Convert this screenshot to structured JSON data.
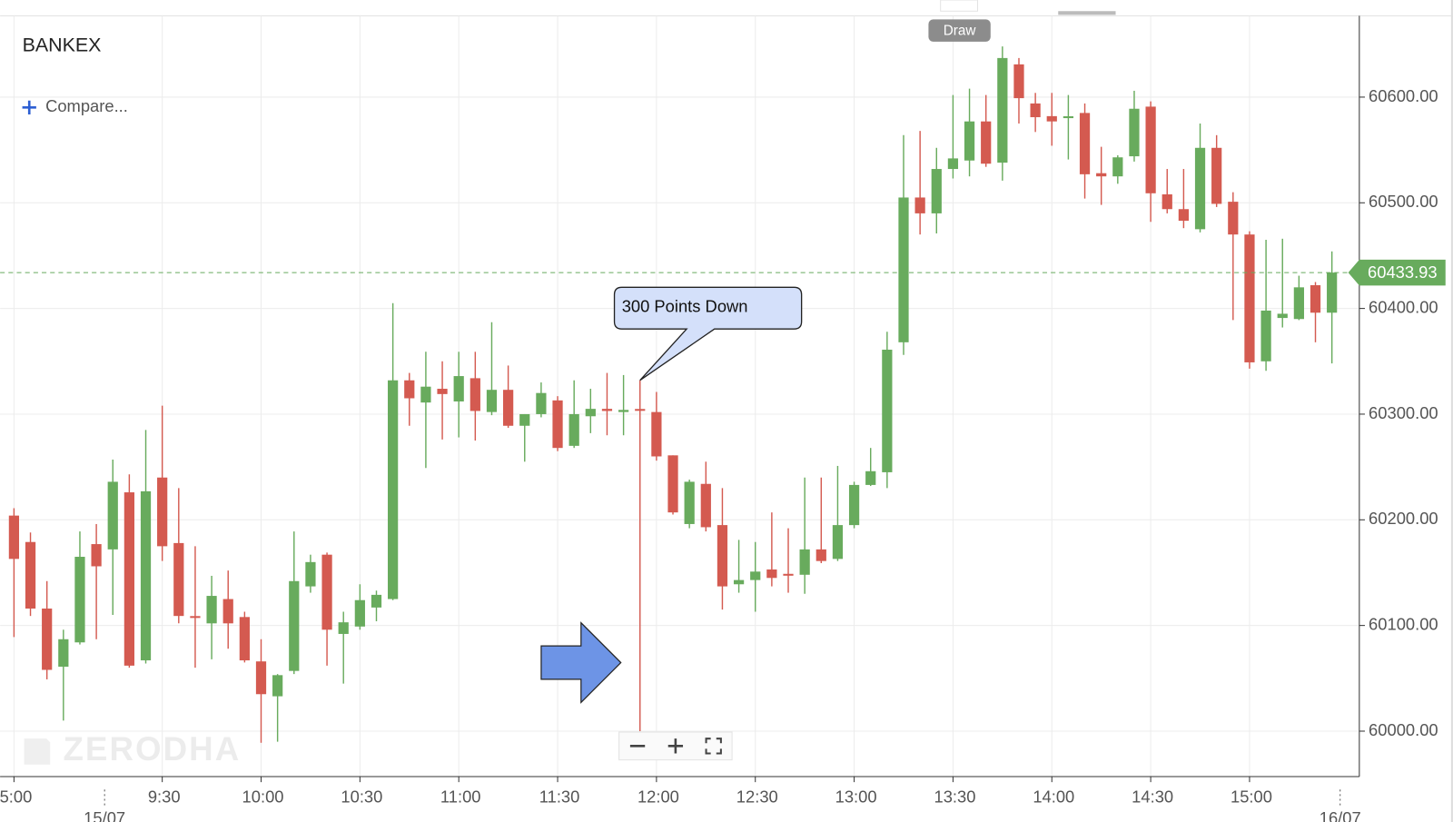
{
  "chart_data": {
    "type": "candlestick",
    "title": "BANKEX",
    "categories": [
      "5:00",
      null,
      null,
      null,
      null,
      null,
      null,
      null,
      null,
      "9:30",
      null,
      null,
      null,
      null,
      null,
      "10:00",
      null,
      null,
      null,
      null,
      null,
      "10:30",
      null,
      null,
      null,
      null,
      null,
      "11:00",
      null,
      null,
      null,
      null,
      null,
      "11:30",
      null,
      null,
      null,
      null,
      null,
      "12:00",
      null,
      null,
      null,
      null,
      null,
      "12:30",
      null,
      null,
      null,
      null,
      null,
      "13:00",
      null,
      null,
      null,
      null,
      null,
      "13:30",
      null,
      null,
      null,
      null,
      null,
      "14:00",
      null,
      null,
      null,
      null,
      null,
      "14:30",
      null,
      null,
      null,
      null,
      null,
      "15:00",
      null,
      null,
      null,
      null,
      null
    ],
    "day_labels": [
      "15/07",
      "16/07"
    ],
    "open": [
      60204,
      60179,
      60116,
      60061,
      60084,
      60177,
      60172,
      60226,
      60067,
      60240,
      60178,
      60108,
      60102,
      60125,
      60108,
      60066,
      60033,
      60057,
      60137,
      60167,
      60092,
      60099,
      60117,
      60125,
      60332,
      60311,
      60324,
      60312,
      60334,
      60302,
      60323,
      60289,
      60300,
      60313,
      60270,
      60298,
      60305,
      60302,
      60304,
      60302,
      60261,
      60196,
      60234,
      60195,
      60139,
      60143,
      60153,
      60148,
      60148,
      60172,
      60163,
      60195,
      60233,
      60245,
      60368,
      60505,
      60490,
      60532,
      60540,
      60577,
      60538,
      60631,
      60594,
      60582,
      60580,
      60585,
      60528,
      60525,
      60544,
      60591,
      60508,
      60494,
      60475,
      60552,
      60501,
      60470,
      60350,
      60391,
      60390,
      60422,
      60396
    ],
    "high": [
      60211,
      60188,
      60142,
      60096,
      60189,
      60196,
      60257,
      60243,
      60285,
      60308,
      60230,
      60175,
      60147,
      60152,
      60113,
      60087,
      60054,
      60189,
      60167,
      60169,
      60113,
      60139,
      60133,
      60405,
      60339,
      60359,
      60350,
      60359,
      60359,
      60387,
      60346,
      60300,
      60330,
      60317,
      60332,
      60324,
      60339,
      60337,
      60332,
      60321,
      60261,
      60238,
      60255,
      60230,
      60181,
      60179,
      60207,
      60192,
      60240,
      60240,
      60251,
      60236,
      60268,
      60378,
      60564,
      60568,
      60552,
      60602,
      60608,
      60602,
      60648,
      60637,
      60604,
      60604,
      60602,
      60594,
      60553,
      60545,
      60606,
      60596,
      60532,
      60532,
      60575,
      60564,
      60510,
      60473,
      60465,
      60466,
      60431,
      60425,
      60454
    ],
    "low": [
      60089,
      60109,
      60049,
      60010,
      60082,
      60087,
      60110,
      60060,
      60064,
      60161,
      60102,
      60060,
      60068,
      60078,
      60065,
      59989,
      59990,
      60054,
      60131,
      60062,
      60045,
      60096,
      60104,
      60124,
      60289,
      60249,
      60276,
      60278,
      60275,
      60299,
      60287,
      60255,
      60297,
      60265,
      60268,
      60282,
      60280,
      60280,
      60000,
      60256,
      60205,
      60192,
      60189,
      60115,
      60131,
      60113,
      60137,
      60131,
      60130,
      60159,
      60161,
      60192,
      60232,
      60230,
      60356,
      60470,
      60471,
      60523,
      60525,
      60534,
      60521,
      60575,
      60567,
      60554,
      60541,
      60504,
      60498,
      60518,
      60539,
      60482,
      60490,
      60476,
      60472,
      60496,
      60389,
      60343,
      60341,
      60382,
      60389,
      60368,
      60348
    ],
    "close": [
      60163,
      60116,
      60058,
      60087,
      60165,
      60156,
      60236,
      60062,
      60227,
      60175,
      60109,
      60107,
      60128,
      60102,
      60067,
      60035,
      60053,
      60142,
      60160,
      60096,
      60103,
      60124,
      60129,
      60332,
      60315,
      60326,
      60319,
      60336,
      60303,
      60323,
      60289,
      60300,
      60320,
      60268,
      60300,
      60305,
      60303,
      60304,
      60303,
      60260,
      60207,
      60236,
      60193,
      60137,
      60143,
      60151,
      60145,
      60148,
      60172,
      60161,
      60195,
      60233,
      60246,
      60361,
      60505,
      60490,
      60532,
      60542,
      60577,
      60537,
      60637,
      60599,
      60581,
      60577,
      60581,
      60527,
      60525,
      60543,
      60589,
      60509,
      60494,
      60483,
      60552,
      60499,
      60470,
      60349,
      60398,
      60395,
      60420,
      60396,
      60433.93
    ],
    "up_color": "#68ab5d",
    "down_color": "#d45a50",
    "ylim": [
      59957,
      60677
    ],
    "yticks": [
      {
        "value": 60000,
        "label": "60000.00"
      },
      {
        "value": 60100,
        "label": "60100.00"
      },
      {
        "value": 60200,
        "label": "60200.00"
      },
      {
        "value": 60300,
        "label": "60300.00"
      },
      {
        "value": 60400,
        "label": "60400.00"
      },
      {
        "value": 60500,
        "label": "60500.00"
      },
      {
        "value": 60600,
        "label": "60600.00"
      }
    ],
    "grid": true,
    "annotation": {
      "text": "300 Points Down",
      "index": 38
    }
  },
  "toolbar": {
    "compare": "Compare...",
    "draw": "Draw",
    "watermark": "ZERODHA"
  }
}
